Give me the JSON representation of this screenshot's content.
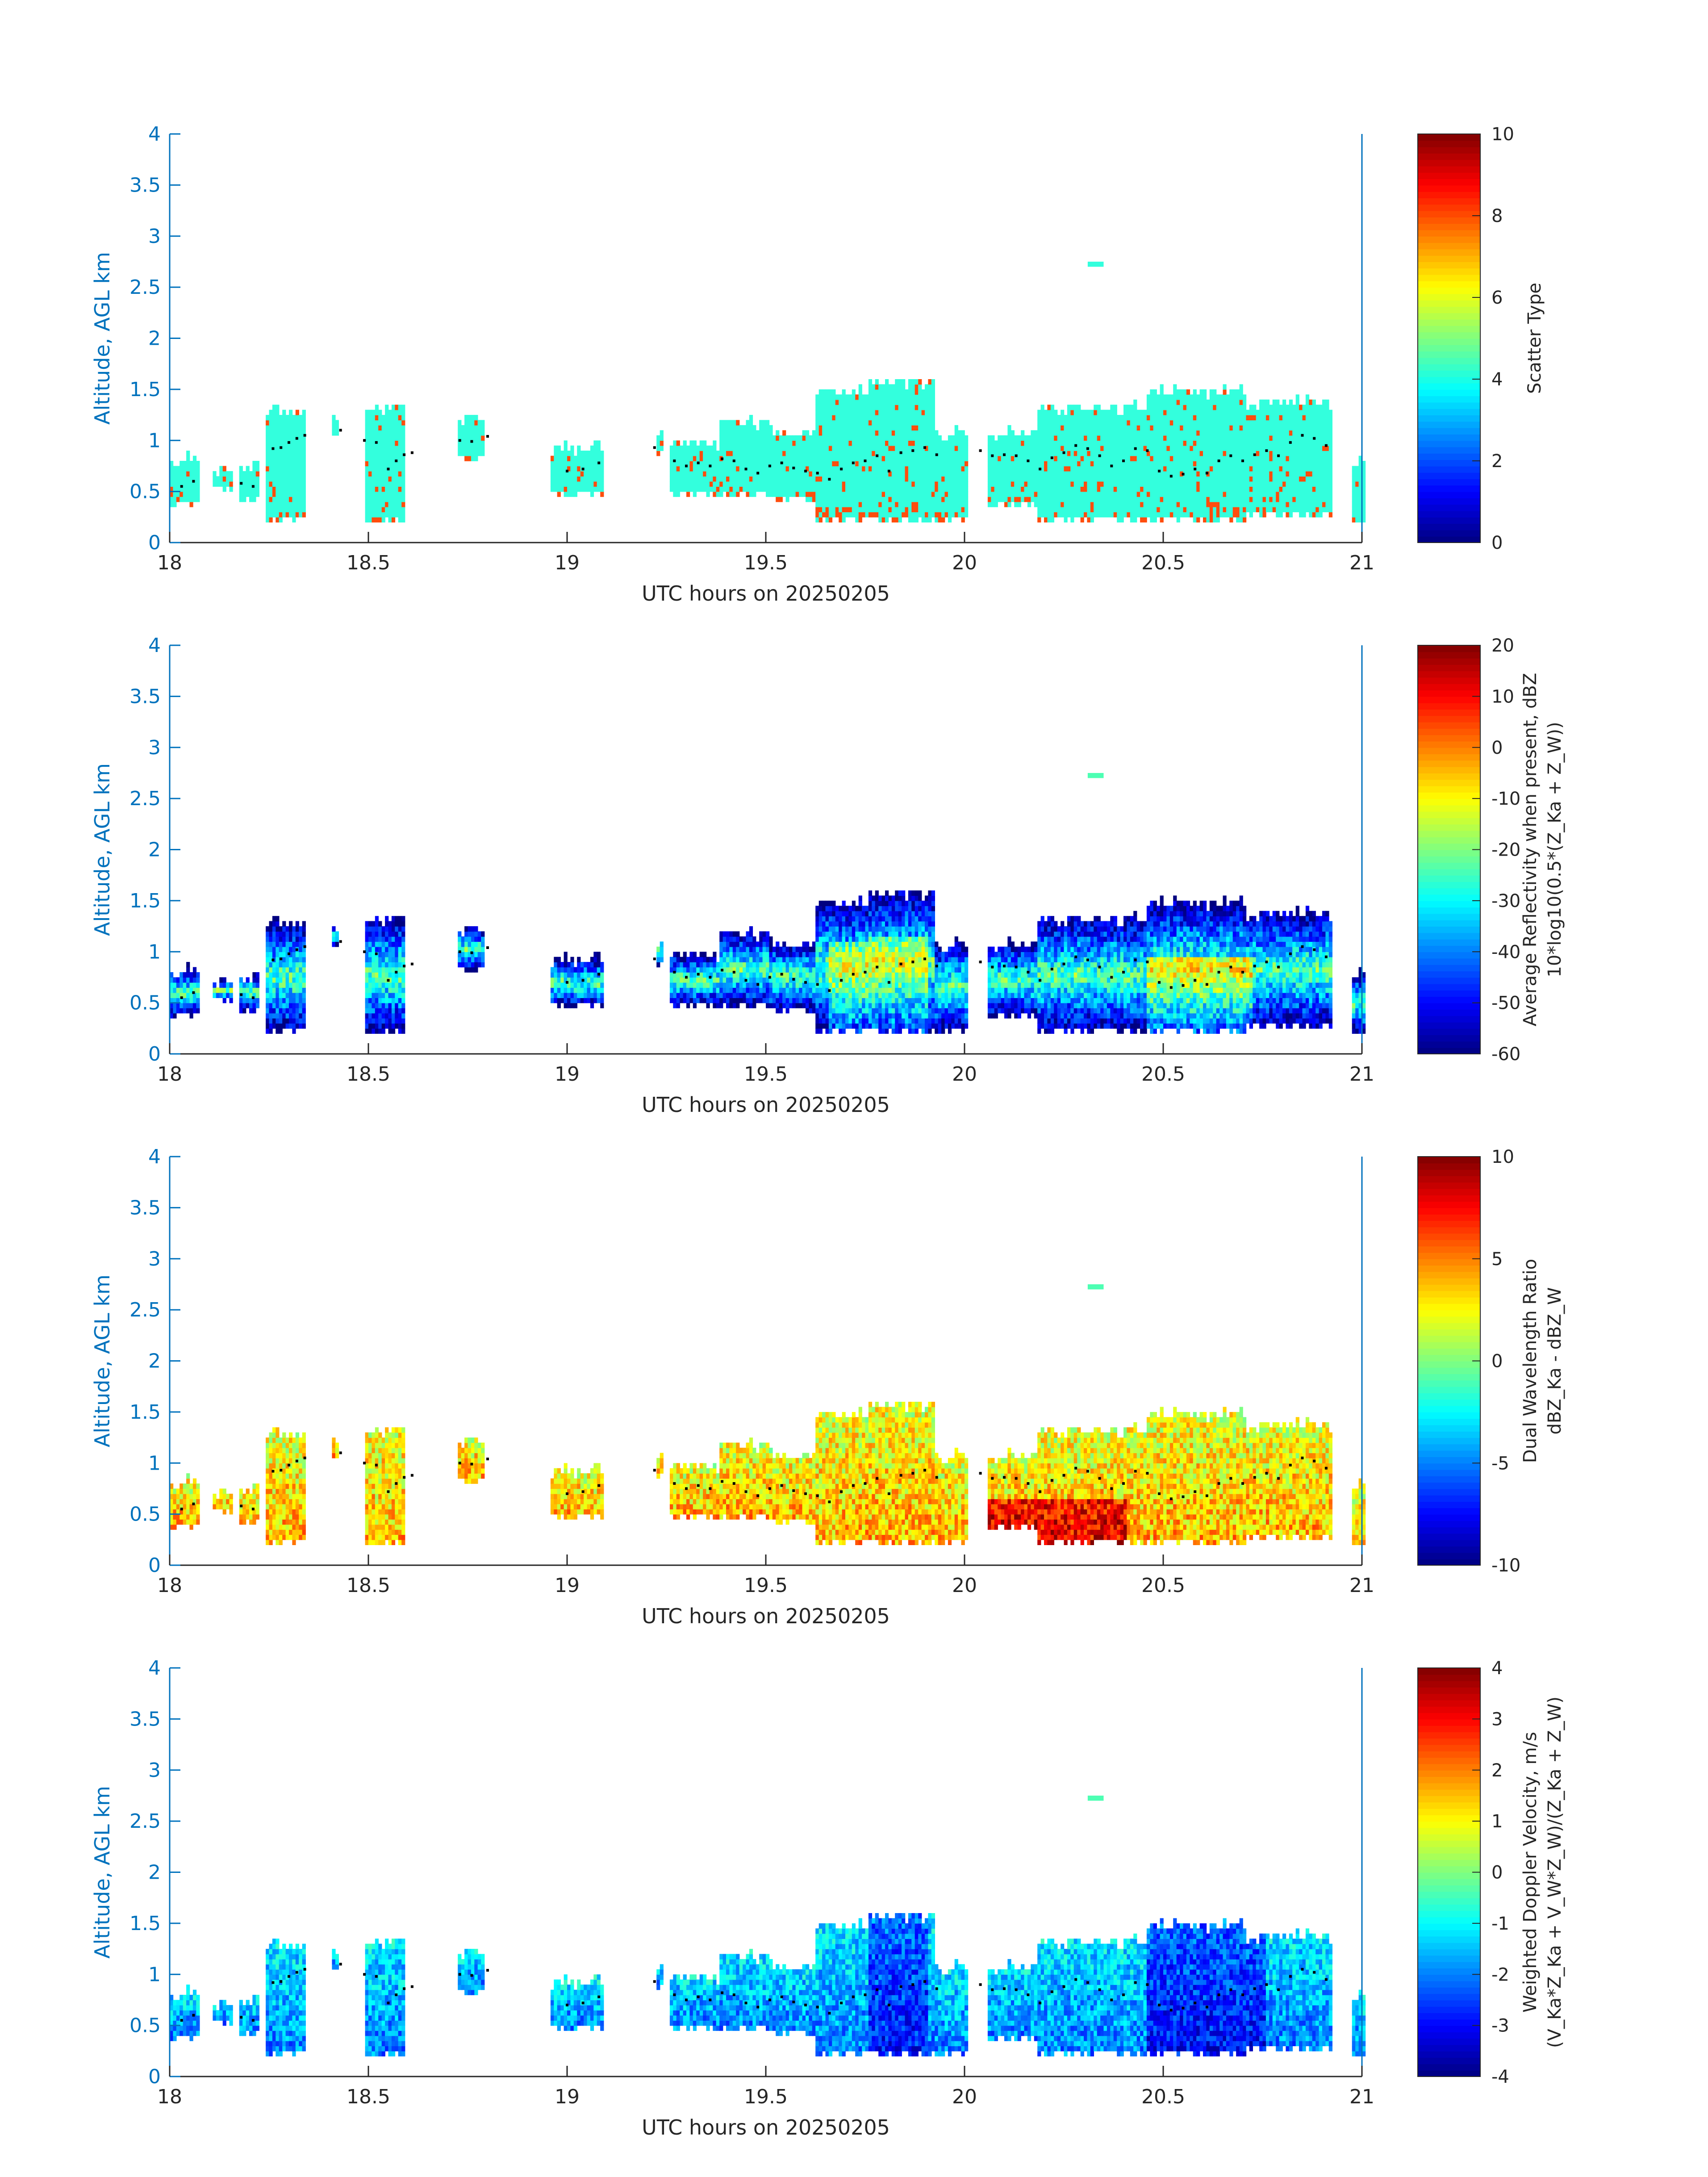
{
  "figure": {
    "date": "20250205"
  },
  "colors": {
    "axis_left": "#0072bd",
    "axis_bottom": "#262626",
    "cyan": "#33ffdd",
    "orange": "#ff4d0d",
    "dots": "#000000"
  },
  "chart_data": [
    {
      "type": "heatmap",
      "id": "scatter-type",
      "title": "",
      "xlabel": "UTC hours on 20250205",
      "ylabel": "Altitude, AGL km",
      "xlim": [
        18,
        21
      ],
      "ylim": [
        0,
        4
      ],
      "x_ticks": [
        "18",
        "18.5",
        "19",
        "19.5",
        "20",
        "20.5",
        "21"
      ],
      "y_ticks": [
        "0",
        "0.5",
        "1",
        "1.5",
        "2",
        "2.5",
        "3",
        "3.5",
        "4"
      ],
      "colorbar": {
        "label_lines": [
          "Scatter Type"
        ],
        "range": [
          0,
          10
        ],
        "ticks": [
          "0",
          "2",
          "4",
          "6",
          "8",
          "10"
        ]
      },
      "description_values": {
        "dominant_value": 4,
        "secondary_value": 9
      }
    },
    {
      "type": "heatmap",
      "id": "reflectivity",
      "title": "",
      "xlabel": "UTC hours on 20250205",
      "ylabel": "Altitude, AGL km",
      "xlim": [
        18,
        21
      ],
      "ylim": [
        0,
        4
      ],
      "x_ticks": [
        "18",
        "18.5",
        "19",
        "19.5",
        "20",
        "20.5",
        "21"
      ],
      "y_ticks": [
        "0",
        "0.5",
        "1",
        "1.5",
        "2",
        "2.5",
        "3",
        "3.5",
        "4"
      ],
      "colorbar": {
        "label_lines": [
          "Average Reflectivity when present, dBZ",
          "10*log10(0.5*(Z_Ka + Z_W))"
        ],
        "range": [
          -60,
          20
        ],
        "ticks": [
          "-60",
          "-50",
          "-40",
          "-30",
          "-20",
          "-10",
          "0",
          "10",
          "20"
        ]
      }
    },
    {
      "type": "heatmap",
      "id": "dwr",
      "title": "",
      "xlabel": "UTC hours on 20250205",
      "ylabel": "Altitude, AGL km",
      "xlim": [
        18,
        21
      ],
      "ylim": [
        0,
        4
      ],
      "x_ticks": [
        "18",
        "18.5",
        "19",
        "19.5",
        "20",
        "20.5",
        "21"
      ],
      "y_ticks": [
        "0",
        "0.5",
        "1",
        "1.5",
        "2",
        "2.5",
        "3",
        "3.5",
        "4"
      ],
      "colorbar": {
        "label_lines": [
          "Dual Wavelength Ratio",
          "dBZ_Ka - dBZ_W"
        ],
        "range": [
          -10,
          10
        ],
        "ticks": [
          "-10",
          "-5",
          "0",
          "5",
          "10"
        ]
      }
    },
    {
      "type": "heatmap",
      "id": "doppler",
      "title": "",
      "xlabel": "UTC hours on 20250205",
      "ylabel": "Altitude, AGL km",
      "xlim": [
        18,
        21
      ],
      "ylim": [
        0,
        4
      ],
      "x_ticks": [
        "18",
        "18.5",
        "19",
        "19.5",
        "20",
        "20.5",
        "21"
      ],
      "y_ticks": [
        "0",
        "0.5",
        "1",
        "1.5",
        "2",
        "2.5",
        "3",
        "3.5",
        "4"
      ],
      "colorbar": {
        "label_lines": [
          "Weighted Doppler Velocity, m/s",
          "(V_Ka*Z_Ka + V_W*Z_W)/(Z_Ka + Z_W)"
        ],
        "range": [
          -4,
          4
        ],
        "ticks": [
          "-4",
          "-3",
          "-2",
          "-1",
          "0",
          "1",
          "2",
          "3",
          "4"
        ]
      }
    }
  ],
  "cloud_segments": [
    {
      "t0": 18.0,
      "t1": 18.07,
      "z0": 0.35,
      "z1": 0.8
    },
    {
      "t0": 18.1,
      "t1": 18.15,
      "z0": 0.5,
      "z1": 0.7
    },
    {
      "t0": 18.17,
      "t1": 18.22,
      "z0": 0.4,
      "z1": 0.75
    },
    {
      "t0": 18.24,
      "t1": 18.34,
      "z0": 0.2,
      "z1": 1.25
    },
    {
      "t0": 18.4,
      "t1": 18.42,
      "z0": 1.05,
      "z1": 1.2
    },
    {
      "t0": 18.49,
      "t1": 18.59,
      "z0": 0.2,
      "z1": 1.28
    },
    {
      "t0": 18.72,
      "t1": 18.79,
      "z0": 0.8,
      "z1": 1.2
    },
    {
      "t0": 18.95,
      "t1": 19.09,
      "z0": 0.45,
      "z1": 0.9
    },
    {
      "t0": 19.22,
      "t1": 19.24,
      "z0": 0.85,
      "z1": 1.1
    },
    {
      "t0": 19.25,
      "t1": 19.38,
      "z0": 0.45,
      "z1": 0.95
    },
    {
      "t0": 19.38,
      "t1": 19.5,
      "z0": 0.45,
      "z1": 1.15
    },
    {
      "t0": 19.5,
      "t1": 19.62,
      "z0": 0.4,
      "z1": 1.05
    },
    {
      "t0": 19.62,
      "t1": 19.75,
      "z0": 0.2,
      "z1": 1.45
    },
    {
      "t0": 19.75,
      "t1": 19.92,
      "z0": 0.2,
      "z1": 1.55
    },
    {
      "t0": 19.92,
      "t1": 20.0,
      "z0": 0.2,
      "z1": 1.05
    },
    {
      "t0": 20.05,
      "t1": 20.18,
      "z0": 0.35,
      "z1": 1.05
    },
    {
      "t0": 20.18,
      "t1": 20.45,
      "z0": 0.2,
      "z1": 1.3
    },
    {
      "t0": 20.45,
      "t1": 20.7,
      "z0": 0.2,
      "z1": 1.45
    },
    {
      "t0": 20.7,
      "t1": 20.92,
      "z0": 0.25,
      "z1": 1.35
    },
    {
      "t0": 20.97,
      "t1": 21.0,
      "z0": 0.2,
      "z1": 0.75
    }
  ],
  "cloud_base_km": [
    [
      18.03,
      0.55
    ],
    [
      18.06,
      0.6
    ],
    [
      18.18,
      0.58
    ],
    [
      18.21,
      0.55
    ],
    [
      18.26,
      0.92
    ],
    [
      18.28,
      0.93
    ],
    [
      18.3,
      0.98
    ],
    [
      18.32,
      1.02
    ],
    [
      18.34,
      1.05
    ],
    [
      18.43,
      1.1
    ],
    [
      18.49,
      1.0
    ],
    [
      18.52,
      0.98
    ],
    [
      18.55,
      0.72
    ],
    [
      18.57,
      0.8
    ],
    [
      18.59,
      0.86
    ],
    [
      18.61,
      0.88
    ],
    [
      18.73,
      1.0
    ],
    [
      18.76,
      0.99
    ],
    [
      18.8,
      1.04
    ],
    [
      19.0,
      0.7
    ],
    [
      19.04,
      0.72
    ],
    [
      19.08,
      0.78
    ],
    [
      19.22,
      0.93
    ],
    [
      19.27,
      0.8
    ],
    [
      19.3,
      0.75
    ],
    [
      19.33,
      0.78
    ],
    [
      19.36,
      0.75
    ],
    [
      19.39,
      0.82
    ],
    [
      19.42,
      0.8
    ],
    [
      19.45,
      0.72
    ],
    [
      19.48,
      0.68
    ],
    [
      19.51,
      0.75
    ],
    [
      19.54,
      0.78
    ],
    [
      19.57,
      0.73
    ],
    [
      19.6,
      0.7
    ],
    [
      19.63,
      0.68
    ],
    [
      19.66,
      0.62
    ],
    [
      19.69,
      0.72
    ],
    [
      19.72,
      0.78
    ],
    [
      19.75,
      0.8
    ],
    [
      19.78,
      0.85
    ],
    [
      19.81,
      0.7
    ],
    [
      19.84,
      0.88
    ],
    [
      19.87,
      0.9
    ],
    [
      19.9,
      0.93
    ],
    [
      19.93,
      0.86
    ],
    [
      20.04,
      0.9
    ],
    [
      20.07,
      0.85
    ],
    [
      20.1,
      0.86
    ],
    [
      20.13,
      0.85
    ],
    [
      20.16,
      0.8
    ],
    [
      20.19,
      0.72
    ],
    [
      20.22,
      0.83
    ],
    [
      20.25,
      0.88
    ],
    [
      20.28,
      0.95
    ],
    [
      20.31,
      0.92
    ],
    [
      20.34,
      0.85
    ],
    [
      20.37,
      0.75
    ],
    [
      20.4,
      0.8
    ],
    [
      20.43,
      0.92
    ],
    [
      20.46,
      0.9
    ],
    [
      20.49,
      0.7
    ],
    [
      20.52,
      0.65
    ],
    [
      20.55,
      0.67
    ],
    [
      20.58,
      0.72
    ],
    [
      20.61,
      0.68
    ],
    [
      20.64,
      0.8
    ],
    [
      20.67,
      0.85
    ],
    [
      20.7,
      0.8
    ],
    [
      20.73,
      0.86
    ],
    [
      20.76,
      0.9
    ],
    [
      20.79,
      0.85
    ],
    [
      20.82,
      0.98
    ],
    [
      20.85,
      1.05
    ],
    [
      20.88,
      1.02
    ],
    [
      20.91,
      0.95
    ]
  ]
}
